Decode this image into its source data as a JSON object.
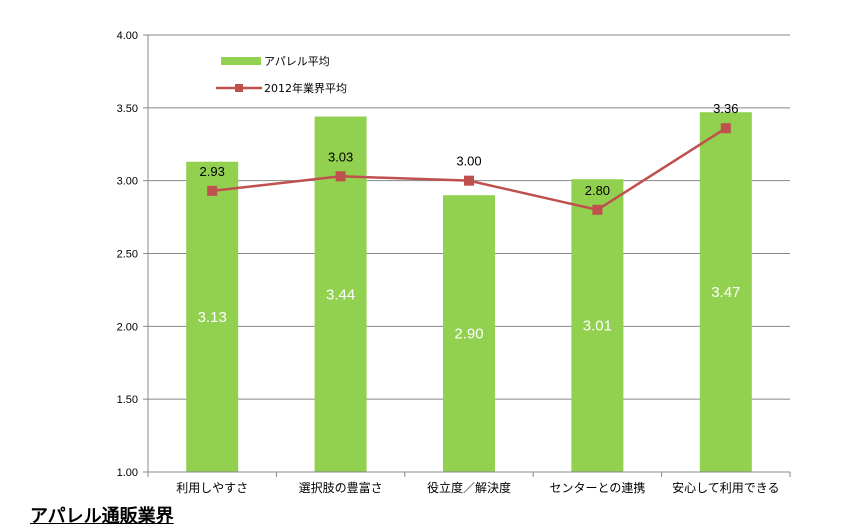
{
  "caption": "アパレル通販業界",
  "chart_data": {
    "type": "bar",
    "categories": [
      "利用しやすさ",
      "選択肢の豊富さ",
      "役立度／解決度",
      "センターとの連携",
      "安心して利用できる"
    ],
    "series": [
      {
        "name": "アパレル平均",
        "type": "bar",
        "values": [
          3.13,
          3.44,
          2.9,
          3.01,
          3.47
        ],
        "labels": [
          "3.13",
          "3.44",
          "2.90",
          "3.01",
          "3.47"
        ],
        "color": "#92d050"
      },
      {
        "name": "2012年業界平均",
        "type": "line",
        "values": [
          2.93,
          3.03,
          3.0,
          2.8,
          3.36
        ],
        "labels": [
          "2.93",
          "3.03",
          "3.00",
          "2.80",
          "3.36"
        ],
        "color": "#c0504d"
      }
    ],
    "ylim": [
      1.0,
      4.0
    ],
    "yticks": [
      "1.00",
      "1.50",
      "2.00",
      "2.50",
      "3.00",
      "3.50",
      "4.00"
    ],
    "grid": true,
    "legend": "top-left"
  }
}
